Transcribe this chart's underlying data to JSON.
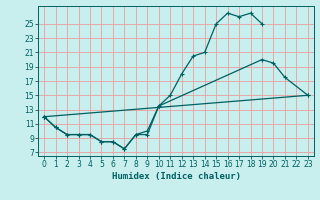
{
  "xlabel": "Humidex (Indice chaleur)",
  "bg_color": "#c8eeee",
  "grid_color": "#e8a0a0",
  "line_color": "#006060",
  "xlim": [
    -0.5,
    23.5
  ],
  "ylim": [
    6.5,
    27.5
  ],
  "yticks": [
    7,
    9,
    11,
    13,
    15,
    17,
    19,
    21,
    23,
    25
  ],
  "xticks": [
    0,
    1,
    2,
    3,
    4,
    5,
    6,
    7,
    8,
    9,
    10,
    11,
    12,
    13,
    14,
    15,
    16,
    17,
    18,
    19,
    20,
    21,
    22,
    23
  ],
  "line1_x": [
    0,
    1,
    2,
    3,
    4,
    5,
    6,
    7,
    8,
    9,
    10,
    11,
    12,
    13,
    14,
    15,
    16,
    17,
    18,
    19
  ],
  "line1_y": [
    12.0,
    10.5,
    9.5,
    9.5,
    9.5,
    8.5,
    8.5,
    7.5,
    9.5,
    10.0,
    13.5,
    15.0,
    18.0,
    20.5,
    21.0,
    25.0,
    26.5,
    26.0,
    26.5,
    25.0
  ],
  "line2_x": [
    0,
    1,
    2,
    3,
    4,
    5,
    6,
    7,
    8,
    9,
    10,
    19,
    20,
    21,
    23
  ],
  "line2_y": [
    12.0,
    10.5,
    9.5,
    9.5,
    9.5,
    8.5,
    8.5,
    7.5,
    9.5,
    9.5,
    13.5,
    20.0,
    19.5,
    17.5,
    15.0
  ],
  "line3_x": [
    0,
    23
  ],
  "line3_y": [
    12.0,
    15.0
  ],
  "xlabel_fontsize": 6.5,
  "tick_fontsize": 5.5,
  "linewidth": 0.9,
  "markersize": 3.0
}
